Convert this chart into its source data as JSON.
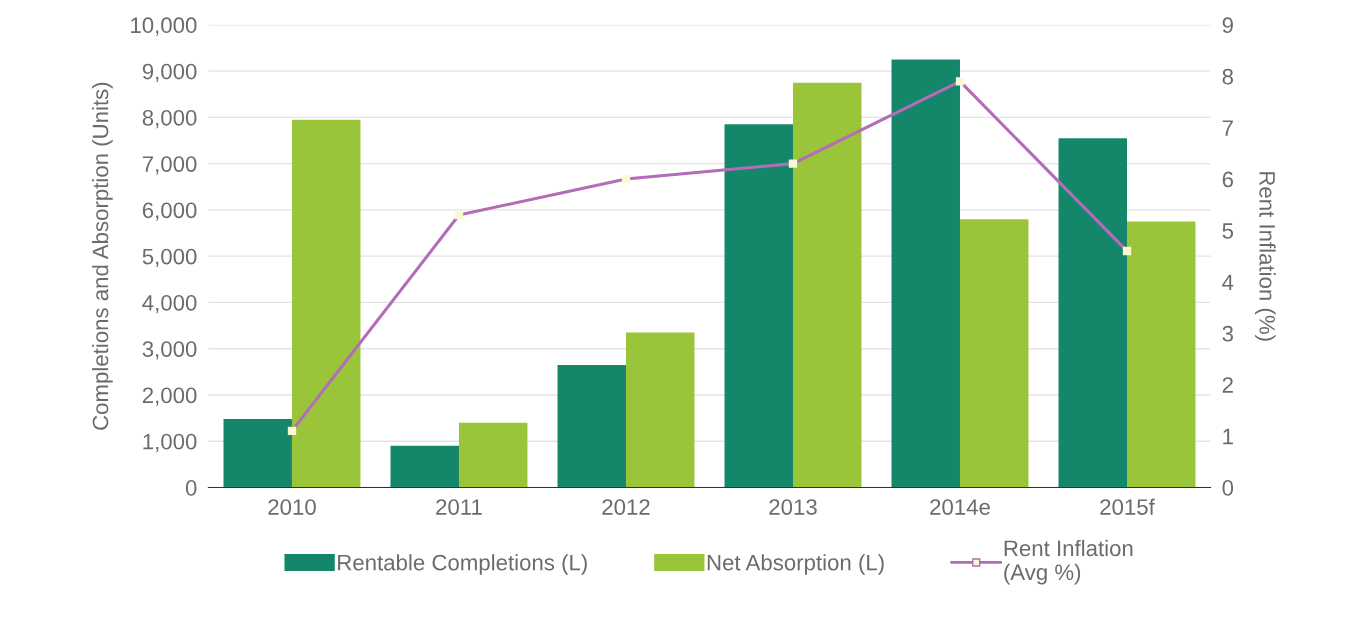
{
  "chart_data": {
    "type": "bar",
    "categories": [
      "2010",
      "2011",
      "2012",
      "2013",
      "2014e",
      "2015f"
    ],
    "ylabel": "Completions and Absorption (Units)",
    "y2label": "Rent Inflation (%)",
    "series": [
      {
        "name": "Rentable Completions (L)",
        "color": "#14876b",
        "values": [
          1480,
          900,
          2650,
          7850,
          9250,
          7550
        ]
      },
      {
        "name": "Net Absorption (L)",
        "color": "#9ac53a",
        "values": [
          7950,
          1400,
          3350,
          8750,
          5800,
          5750
        ]
      },
      {
        "name": "Rent Inflation\n(Avg %)",
        "type": "line",
        "axis": "y2",
        "color": "#b36cb8",
        "marker": "square",
        "values": [
          1.1,
          5.3,
          6.0,
          6.3,
          7.9,
          4.6
        ]
      }
    ],
    "ylim": [
      0,
      10000
    ],
    "yticks": [
      {
        "value": 0,
        "label": "0"
      },
      {
        "value": 1000,
        "label": "1,000"
      },
      {
        "value": 2000,
        "label": "2,000"
      },
      {
        "value": 3000,
        "label": "3,000"
      },
      {
        "value": 4000,
        "label": "4,000"
      },
      {
        "value": 5000,
        "label": "5,000"
      },
      {
        "value": 6000,
        "label": "6,000"
      },
      {
        "value": 7000,
        "label": "7,000"
      },
      {
        "value": 8000,
        "label": "8,000"
      },
      {
        "value": 9000,
        "label": "9,000"
      },
      {
        "value": 10000,
        "label": "10,000"
      }
    ],
    "y2lim": [
      0,
      9
    ],
    "y2ticks": [
      0,
      1,
      2,
      3,
      4,
      5,
      6,
      7,
      8,
      9
    ],
    "grid": "y",
    "legend": "bottom"
  }
}
